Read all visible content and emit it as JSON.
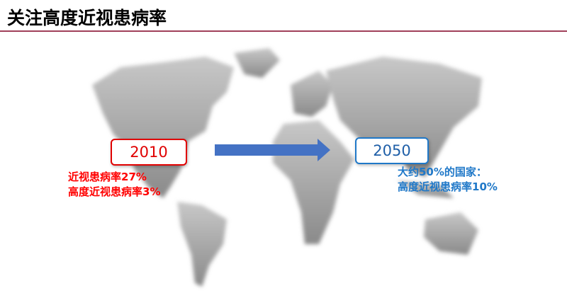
{
  "title": "关注高度近视患病率",
  "left": {
    "year": "2010",
    "lines": [
      "近视患病率27%",
      "高度近视患病率3%"
    ],
    "color": "#e00000"
  },
  "right": {
    "year": "2050",
    "lines": [
      "大约50%的国家：",
      "高度近视患病率10%"
    ],
    "color": "#1f78c8"
  },
  "arrow_color": "#4472c4",
  "background_image": "world-map"
}
